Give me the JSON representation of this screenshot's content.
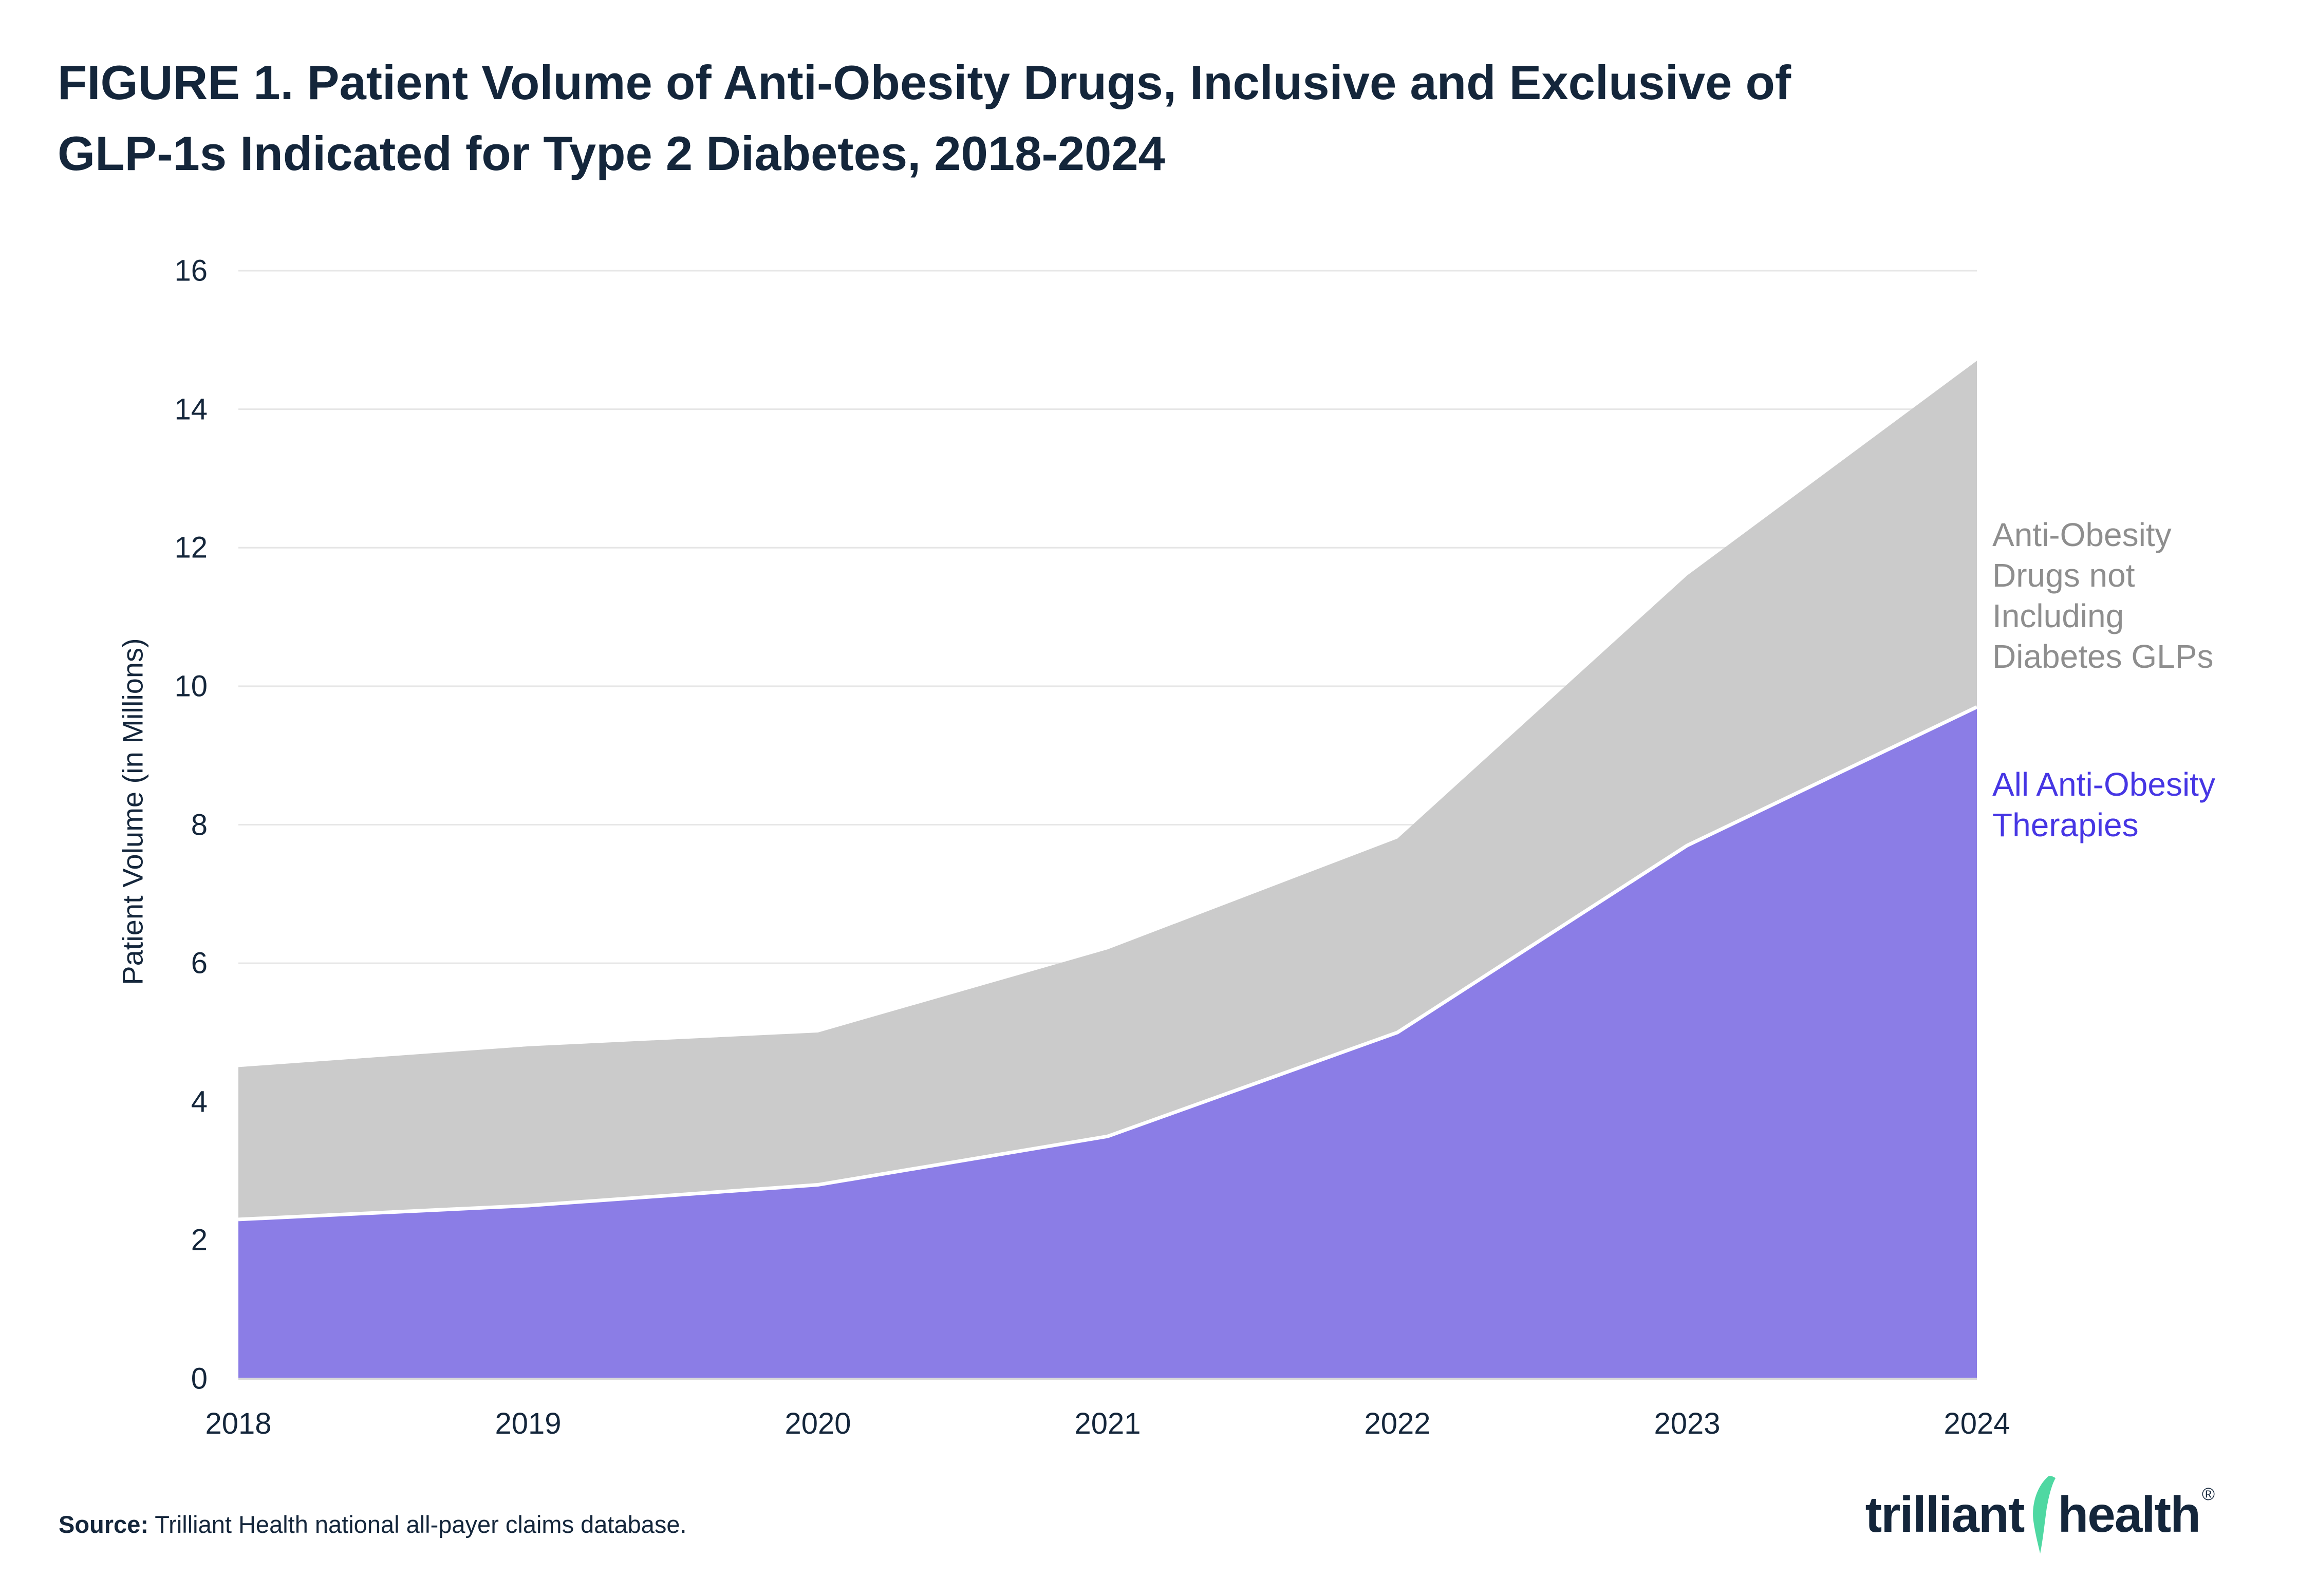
{
  "title": {
    "line1": "FIGURE 1. Patient Volume of Anti-Obesity Drugs, Inclusive and Exclusive of",
    "line2": "GLP-1s Indicated for Type 2 Diabetes, 2018-2024"
  },
  "chart_data": {
    "type": "area",
    "x": [
      2018,
      2019,
      2020,
      2021,
      2022,
      2023,
      2024
    ],
    "series": [
      {
        "name": "All Anti-Obesity Therapies",
        "color": "#8B7DE6",
        "values": [
          2.3,
          2.5,
          2.8,
          3.5,
          5.0,
          7.7,
          9.7
        ]
      },
      {
        "name": "Anti-Obesity Drugs not Including Diabetes GLPs",
        "color": "#CBCBCB",
        "values": [
          4.5,
          4.8,
          5.0,
          6.2,
          7.8,
          11.6,
          14.7
        ],
        "note": "top boundary of gray band drawn between this line and series 0"
      }
    ],
    "ylabel": "Patient Volume (in Millions)",
    "ylim": [
      0,
      16
    ],
    "yticks": [
      0,
      2,
      4,
      6,
      8,
      10,
      12,
      14,
      16
    ],
    "grid": "horizontal",
    "legend_position": "right"
  },
  "legend": {
    "gray_lines": [
      "Anti-Obesity",
      "Drugs not",
      "Including",
      "Diabetes GLPs"
    ],
    "blue_lines": [
      "All Anti-Obesity",
      "Therapies"
    ]
  },
  "source": {
    "label": "Source:",
    "text": " Trilliant Health national all-payer claims database."
  },
  "logo": {
    "word1": "trilliant",
    "word2": "health",
    "reg": "®"
  },
  "colors": {
    "navy": "#14263B",
    "purple": "#8B7DE6",
    "band_gray": "#CBCBCB",
    "legend_gray": "#8E8E8E",
    "legend_blue": "#4636E4",
    "logo_green": "#4FD8A2",
    "gridline": "#E6E6E6",
    "baseline": "#D9D9D9"
  }
}
